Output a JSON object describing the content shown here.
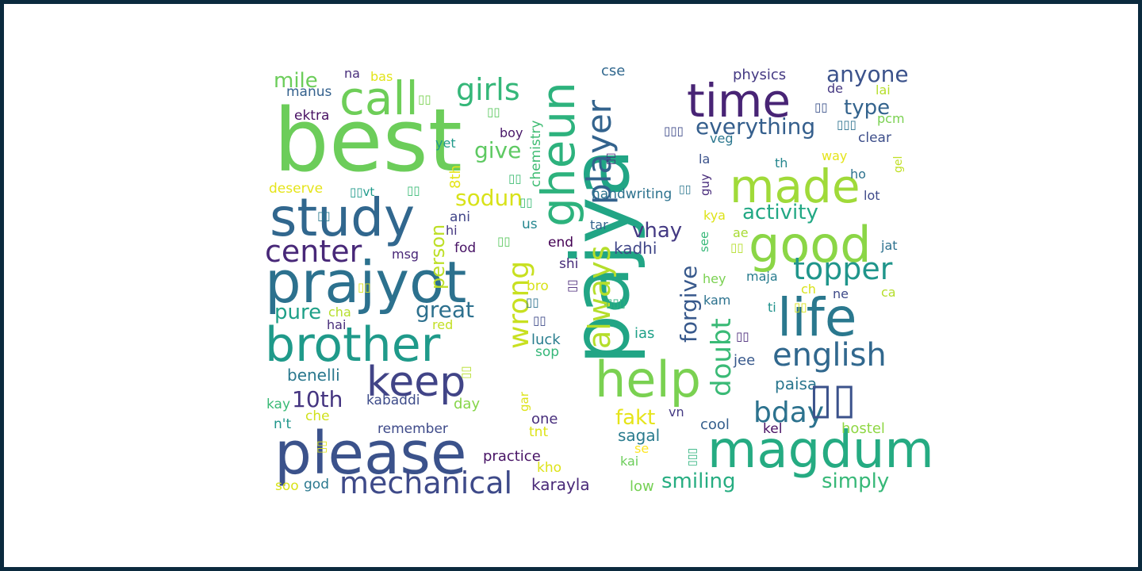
{
  "words": [
    {
      "text": "best",
      "color": "#6ccd5a"
    },
    {
      "text": "pajya",
      "color": "#21a585"
    },
    {
      "text": "prajyot",
      "color": "#2c718e"
    },
    {
      "text": "please",
      "color": "#3b528b"
    },
    {
      "text": "magdum",
      "color": "#25ab82"
    },
    {
      "text": "study",
      "color": "#31678e"
    },
    {
      "text": "brother",
      "color": "#1f9a8a"
    },
    {
      "text": "life",
      "color": "#2a788e"
    },
    {
      "text": "call",
      "color": "#6ece58"
    },
    {
      "text": "time",
      "color": "#482475"
    },
    {
      "text": "gheun",
      "color": "#2db27d"
    },
    {
      "text": "help",
      "color": "#7ad151"
    },
    {
      "text": "good",
      "color": "#8bd646"
    },
    {
      "text": "made",
      "color": "#a0da39"
    },
    {
      "text": "keep",
      "color": "#414487"
    },
    {
      "text": "player",
      "color": "#33638d"
    },
    {
      "text": "english",
      "color": "#31688e"
    },
    {
      "text": "topper",
      "color": "#1f958b"
    },
    {
      "text": "mechanical",
      "color": "#3e4a89"
    },
    {
      "text": "center",
      "color": "#482878"
    },
    {
      "text": "girls",
      "color": "#35b779"
    },
    {
      "text": "always",
      "color": "#b5de2b"
    },
    {
      "text": "wrong",
      "color": "#c8e020"
    },
    {
      "text": "doubt",
      "color": "#3aba76"
    },
    {
      "text": "bday",
      "color": "#2c728e"
    },
    {
      "text": "everything",
      "color": "#355f8d"
    },
    {
      "text": "anyone",
      "color": "#3b528b"
    },
    {
      "text": "type",
      "color": "#33638d"
    },
    {
      "text": "activity",
      "color": "#22a884"
    },
    {
      "text": "smiling",
      "color": "#26ad81"
    },
    {
      "text": "simply",
      "color": "#37b878"
    },
    {
      "text": "great",
      "color": "#2d708e"
    },
    {
      "text": "forgive",
      "color": "#38598c"
    },
    {
      "text": "give",
      "color": "#5ec962"
    },
    {
      "text": "sodun",
      "color": "#d8e219"
    },
    {
      "text": "vhay",
      "color": "#443a83"
    },
    {
      "text": "10th",
      "color": "#453581"
    },
    {
      "text": "pure",
      "color": "#1fa088"
    },
    {
      "text": "fakt",
      "color": "#e5e419"
    },
    {
      "text": "mile",
      "color": "#6ccd5a"
    },
    {
      "text": "person",
      "color": "#bddf26"
    },
    {
      "text": "kadhi",
      "color": "#404688"
    },
    {
      "text": "sagal",
      "color": "#297b8e"
    },
    {
      "text": "karayla",
      "color": "#482878"
    },
    {
      "text": "practice",
      "color": "#471365"
    },
    {
      "text": "benelli",
      "color": "#2a788e"
    },
    {
      "text": "paisa",
      "color": "#2a768e"
    },
    {
      "text": "cse",
      "color": "#31688e"
    },
    {
      "text": "physics",
      "color": "#443983"
    },
    {
      "text": "handwriting",
      "color": "#2c728e"
    },
    {
      "text": "chemistry",
      "color": "#3fbc73"
    },
    {
      "text": "8th",
      "color": "#e5e419"
    },
    {
      "text": "kabaddi",
      "color": "#3e4c8a"
    },
    {
      "text": "remember",
      "color": "#3e4a89"
    },
    {
      "text": "hostel",
      "color": "#8fd744"
    },
    {
      "text": "cool",
      "color": "#355f8d"
    },
    {
      "text": "jee",
      "color": "#38598c"
    },
    {
      "text": "ias",
      "color": "#1fa188"
    },
    {
      "text": "luck",
      "color": "#287d8e"
    },
    {
      "text": "sop",
      "color": "#35b779"
    },
    {
      "text": "one",
      "color": "#472d7b"
    },
    {
      "text": "tnt",
      "color": "#dde318"
    },
    {
      "text": "kho",
      "color": "#dde318"
    },
    {
      "text": "low",
      "color": "#75d054"
    },
    {
      "text": "kai",
      "color": "#6ccd5a"
    },
    {
      "text": "se",
      "color": "#fde725"
    },
    {
      "text": "god",
      "color": "#2a788e"
    },
    {
      "text": "soo",
      "color": "#d8e219"
    },
    {
      "text": "che",
      "color": "#d0e11c"
    },
    {
      "text": "n't",
      "color": "#1f968b"
    },
    {
      "text": "kay",
      "color": "#3aba76"
    },
    {
      "text": "day",
      "color": "#86d549"
    },
    {
      "text": "gar",
      "color": "#dde318"
    },
    {
      "text": "red",
      "color": "#c2df23"
    },
    {
      "text": "hai",
      "color": "#472c7a"
    },
    {
      "text": "cha",
      "color": "#b5de2b"
    },
    {
      "text": "hi",
      "color": "#453781"
    },
    {
      "text": "ani",
      "color": "#404588"
    },
    {
      "text": "msg",
      "color": "#482677"
    },
    {
      "text": "fod",
      "color": "#471365"
    },
    {
      "text": "us",
      "color": "#24868e"
    },
    {
      "text": "end",
      "color": "#440154"
    },
    {
      "text": "shi",
      "color": "#472c7a"
    },
    {
      "text": "bro",
      "color": "#d8e219"
    },
    {
      "text": "tar",
      "color": "#33638d"
    },
    {
      "text": "hey",
      "color": "#7ad151"
    },
    {
      "text": "maja",
      "color": "#287c8e"
    },
    {
      "text": "kam",
      "color": "#2c728e"
    },
    {
      "text": "ti",
      "color": "#20928c"
    },
    {
      "text": "ch",
      "color": "#d8e219"
    },
    {
      "text": "ne",
      "color": "#3e4a89"
    },
    {
      "text": "ca",
      "color": "#b5de2b"
    },
    {
      "text": "ae",
      "color": "#a8db34"
    },
    {
      "text": "kya",
      "color": "#dde318"
    },
    {
      "text": "see",
      "color": "#37b878"
    },
    {
      "text": "guy",
      "color": "#472a7a"
    },
    {
      "text": "la",
      "color": "#3b528b"
    },
    {
      "text": "jat",
      "color": "#2c718e"
    },
    {
      "text": "lot",
      "color": "#3e4989"
    },
    {
      "text": "ho",
      "color": "#2c728e"
    },
    {
      "text": "way",
      "color": "#e5e419"
    },
    {
      "text": "th",
      "color": "#24868e"
    },
    {
      "text": "gel",
      "color": "#c0df25"
    },
    {
      "text": "clear",
      "color": "#3d4e8a"
    },
    {
      "text": "pcm",
      "color": "#7ad151"
    },
    {
      "text": "lai",
      "color": "#b5de2b"
    },
    {
      "text": "de",
      "color": "#453882"
    },
    {
      "text": "veg",
      "color": "#2a768e"
    },
    {
      "text": "boy",
      "color": "#481769"
    },
    {
      "text": "yet",
      "color": "#1f9a8a"
    },
    {
      "text": "deserve",
      "color": "#e5e419"
    },
    {
      "text": "na",
      "color": "#472d7b"
    },
    {
      "text": "bas",
      "color": "#e2e418"
    },
    {
      "text": "manus",
      "color": "#34618d"
    },
    {
      "text": "ektra",
      "color": "#471063"
    },
    {
      "text": "kel",
      "color": "#471063"
    },
    {
      "text": "vn",
      "color": "#443a83"
    },
    {
      "text": "▯▯",
      "color": "#3b528b"
    },
    {
      "text": "▯▯",
      "color": "#7ad151"
    },
    {
      "text": "▯▯",
      "color": "#5ec962"
    },
    {
      "text": "▯▯",
      "color": "#b5de2b"
    },
    {
      "text": "▯▯",
      "color": "#482677"
    },
    {
      "text": "▯▯",
      "color": "#3fbc73"
    },
    {
      "text": "▯▯vt",
      "color": "#1f9a8a"
    },
    {
      "text": "▯▯",
      "color": "#3aba76"
    },
    {
      "text": "▯▯",
      "color": "#2a788e"
    },
    {
      "text": "▯▯",
      "color": "#5ec962"
    },
    {
      "text": "▯▯",
      "color": "#dde318"
    },
    {
      "text": "▯▯",
      "color": "#3aba76"
    },
    {
      "text": "▯▯",
      "color": "#472d7b"
    },
    {
      "text": "▯▯",
      "color": "#2a768e"
    },
    {
      "text": "▯▯▯",
      "color": "#2db27d"
    },
    {
      "text": "▯▯",
      "color": "#2c728e"
    },
    {
      "text": "▯▯",
      "color": "#b5de2b"
    },
    {
      "text": "▯▯",
      "color": "#d8e219"
    },
    {
      "text": "▯▯",
      "color": "#3b528b"
    },
    {
      "text": "▯▯▯",
      "color": "#3e4a89"
    },
    {
      "text": "▯▯▯",
      "color": "#2c728e"
    },
    {
      "text": "▯▯",
      "color": "#482878"
    },
    {
      "text": "▯▯▯",
      "color": "#2db27d"
    },
    {
      "text": "▯▯",
      "color": "#3e4a89"
    },
    {
      "text": "▯▯",
      "color": "#dde318"
    }
  ]
}
